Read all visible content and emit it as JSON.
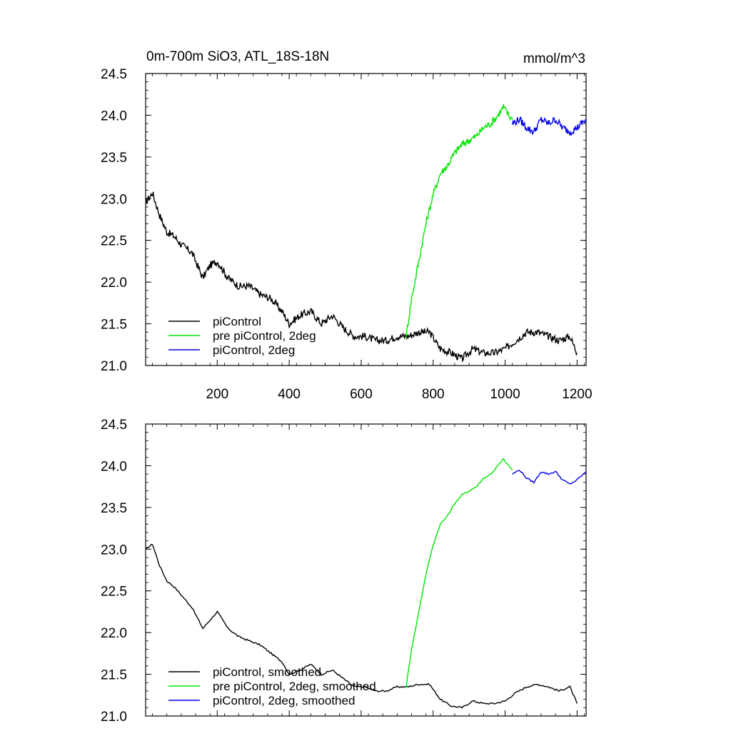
{
  "title": "0m-700m SiO3, ATL_18S-18N",
  "units": "mmol/m^3",
  "chart_data": [
    {
      "type": "line",
      "xlim": [
        1,
        1225
      ],
      "ylim": [
        21.0,
        24.5
      ],
      "x_ticks": [
        200,
        400,
        600,
        800,
        1000,
        1200
      ],
      "x_tick_labels": [
        "200",
        "400",
        "600",
        "800",
        "1000",
        "1200"
      ],
      "y_ticks": [
        21.0,
        21.5,
        22.0,
        22.5,
        23.0,
        23.5,
        24.0,
        24.5
      ],
      "y_tick_labels": [
        "21.0",
        "21.5",
        "22.0",
        "22.5",
        "23.0",
        "23.5",
        "24.0",
        "24.5"
      ],
      "legend_position": "bottom-left",
      "series": [
        {
          "name": "piControl",
          "color": "#000000",
          "x": [
            1,
            20,
            40,
            60,
            80,
            100,
            130,
            160,
            180,
            200,
            230,
            260,
            290,
            320,
            350,
            380,
            400,
            430,
            460,
            490,
            520,
            550,
            580,
            610,
            640,
            670,
            700,
            730,
            760,
            790,
            820,
            850,
            880,
            910,
            940,
            970,
            1000,
            1030,
            1060,
            1090,
            1120,
            1150,
            1180,
            1200
          ],
          "y": [
            22.95,
            23.07,
            22.8,
            22.6,
            22.55,
            22.45,
            22.35,
            22.05,
            22.2,
            22.25,
            22.05,
            21.95,
            21.95,
            21.85,
            21.8,
            21.65,
            21.5,
            21.6,
            21.65,
            21.5,
            21.6,
            21.45,
            21.35,
            21.35,
            21.3,
            21.3,
            21.35,
            21.35,
            21.4,
            21.4,
            21.2,
            21.15,
            21.08,
            21.2,
            21.15,
            21.15,
            21.2,
            21.3,
            21.4,
            21.4,
            21.35,
            21.3,
            21.35,
            21.15
          ]
        },
        {
          "name": "pre piControl, 2deg",
          "color": "#00e600",
          "x": [
            725,
            740,
            760,
            780,
            800,
            820,
            840,
            860,
            880,
            900,
            920,
            940,
            960,
            980,
            995,
            1010,
            1020
          ],
          "y": [
            21.35,
            21.8,
            22.25,
            22.7,
            23.05,
            23.3,
            23.4,
            23.55,
            23.65,
            23.7,
            23.75,
            23.85,
            23.9,
            24.0,
            24.1,
            24.0,
            23.95
          ]
        },
        {
          "name": "piControl, 2deg",
          "color": "#0000e6",
          "x": [
            1020,
            1040,
            1060,
            1080,
            1100,
            1120,
            1140,
            1160,
            1180,
            1200,
            1225
          ],
          "y": [
            23.9,
            23.95,
            23.85,
            23.8,
            23.95,
            23.9,
            23.95,
            23.85,
            23.8,
            23.85,
            23.95
          ]
        }
      ]
    },
    {
      "type": "line",
      "xlim": [
        1,
        1225
      ],
      "ylim": [
        21.0,
        24.5
      ],
      "x_ticks": [
        200,
        400,
        600,
        800,
        1000,
        1200
      ],
      "y_ticks": [
        21.0,
        21.5,
        22.0,
        22.5,
        23.0,
        23.5,
        24.0,
        24.5
      ],
      "y_tick_labels": [
        "21.0",
        "21.5",
        "22.0",
        "22.5",
        "23.0",
        "23.5",
        "24.0",
        "24.5"
      ],
      "legend_position": "bottom-left",
      "series": [
        {
          "name": "piControl, smoothed",
          "color": "#000000",
          "x": [
            1,
            20,
            40,
            60,
            80,
            100,
            130,
            160,
            180,
            200,
            230,
            260,
            290,
            320,
            350,
            380,
            400,
            430,
            460,
            490,
            520,
            550,
            580,
            610,
            640,
            670,
            700,
            730,
            760,
            790,
            820,
            850,
            880,
            910,
            940,
            970,
            1000,
            1030,
            1060,
            1090,
            1120,
            1150,
            1180,
            1200
          ],
          "y": [
            23.0,
            23.06,
            22.8,
            22.62,
            22.55,
            22.45,
            22.3,
            22.05,
            22.15,
            22.25,
            22.05,
            21.95,
            21.9,
            21.85,
            21.75,
            21.65,
            21.5,
            21.55,
            21.62,
            21.5,
            21.55,
            21.45,
            21.35,
            21.35,
            21.3,
            21.3,
            21.35,
            21.35,
            21.38,
            21.38,
            21.2,
            21.12,
            21.1,
            21.18,
            21.15,
            21.15,
            21.18,
            21.28,
            21.35,
            21.38,
            21.35,
            21.3,
            21.35,
            21.15
          ]
        },
        {
          "name": "pre piControl, 2deg, smoothed",
          "color": "#00e600",
          "x": [
            725,
            740,
            760,
            780,
            800,
            820,
            840,
            860,
            880,
            900,
            920,
            940,
            960,
            980,
            995,
            1010,
            1020
          ],
          "y": [
            21.35,
            21.8,
            22.25,
            22.7,
            23.05,
            23.3,
            23.4,
            23.55,
            23.65,
            23.7,
            23.75,
            23.85,
            23.9,
            24.0,
            24.08,
            24.0,
            23.95
          ]
        },
        {
          "name": "piControl, 2deg, smoothed",
          "color": "#0000e6",
          "x": [
            1020,
            1040,
            1060,
            1080,
            1100,
            1120,
            1140,
            1160,
            1180,
            1200,
            1225
          ],
          "y": [
            23.9,
            23.95,
            23.85,
            23.8,
            23.93,
            23.9,
            23.93,
            23.83,
            23.78,
            23.83,
            23.93
          ]
        }
      ]
    }
  ]
}
